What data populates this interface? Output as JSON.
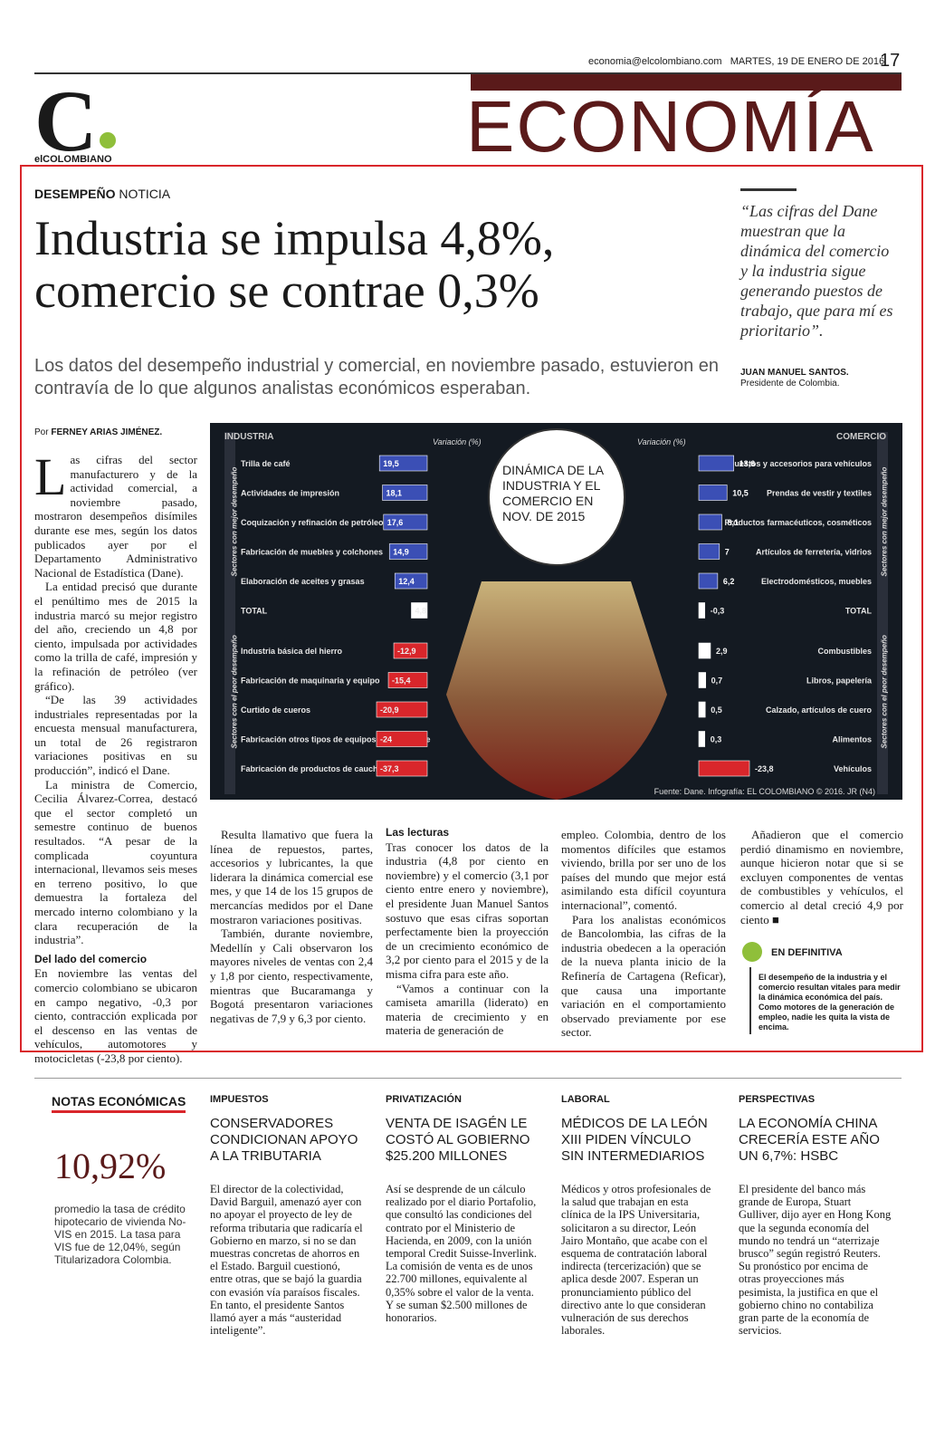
{
  "header": {
    "email": "economia@elcolombiano.com",
    "date": "MARTES, 19 DE ENERO DE 2016",
    "page": "17",
    "brand": "elCOLOMBIANO",
    "brand_letter": "C",
    "section": "ECONOMÍA"
  },
  "article": {
    "kicker_bold": "DESEMPEÑO",
    "kicker": "NOTICIA",
    "headline": "Industria se impulsa 4,8%, comercio se contrae 0,3%",
    "deck": "Los datos del desempeño industrial y comercial, en noviembre pasado, estuvieron en contravía de lo que algunos analistas económicos esperaban.",
    "quote": "“Las cifras del Dane muestran que la dinámica del comercio y la industria sigue generando puestos de trabajo, que para mí es prioritario”.",
    "quote_author": "JUAN MANUEL SANTOS.",
    "quote_role": "Presidente de Colombia.",
    "byline_prefix": "Por",
    "byline": "FERNEY ARIAS JIMÉNEZ.",
    "col1_drop": "L",
    "col1_p1": "as cifras del sector manufacturero y de la actividad comercial, a noviembre pasado, mostraron desempeños disímiles durante ese mes, según los datos publicados ayer por el Departamento Administrativo Nacional de Estadística (Dane).",
    "col1_p2": "La entidad precisó que durante el penúltimo mes de 2015 la industria marcó su mejor registro del año, creciendo un 4,8 por ciento, impulsada por actividades como la trilla de café, impresión y la refinación de petróleo (ver gráfico).",
    "col1_p3": "“De las 39 actividades industriales representadas por la encuesta mensual manufacturera, un total de 26 registraron variaciones positivas en su producción”, indicó el Dane.",
    "col1_p4": "La ministra de Comercio, Cecilia Álvarez-Correa, destacó que el sector completó un semestre continuo de buenos resultados. “A pesar de la complicada coyuntura internacional, llevamos seis meses en terreno positivo, lo que demuestra la fortaleza del mercado interno colombiano y la clara recuperación de la industria”.",
    "col1_h": "Del lado del comercio",
    "col1_p5": "En noviembre las ventas del comercio colombiano se ubicaron en campo negativo, -0,3 por ciento, contracción explicada por el descenso en las ventas de vehículos, automotores y motocicletas (-23,8 por ciento).",
    "col2_p1": "Resulta llamativo que fuera la línea de repuestos, partes, accesorios y lubricantes, la que liderara la dinámica comercial ese mes, y que 14 de los 15 grupos de mercancías medidos por el Dane mostraron variaciones positivas.",
    "col2_p2": "También, durante noviembre, Medellín y Cali observaron los mayores niveles de ventas con 2,4 y 1,8 por ciento, respectivamente, mientras que Bucaramanga y Bogotá presentaron variaciones negativas de 7,9 y 6,3 por ciento.",
    "col3_h": "Las lecturas",
    "col3_p1": "Tras conocer los datos de la industria (4,8 por ciento en noviembre) y el comercio (3,1 por ciento entre enero y noviembre), el presidente Juan Manuel Santos sostuvo que esas cifras soportan perfectamente bien la proyección de un crecimiento económico de 3,2 por ciento para el 2015 y de la misma cifra para este año.",
    "col3_p2": "“Vamos a continuar con la camiseta amarilla (liderato) en materia de crecimiento y en materia de generación de",
    "col4_p1": "empleo. Colombia, dentro de los momentos difíciles que estamos viviendo, brilla por ser uno de los países del mundo que mejor está asimilando esta difícil coyuntura internacional”, comentó.",
    "col4_p2": "Para los analistas económicos de Bancolombia, las cifras de la industria obedecen a la operación de la nueva planta inicio de la Refinería de Cartagena (Reficar), que causa una importante variación en el comportamiento observado previamente por ese sector.",
    "col5_p1": "Añadieron que el comercio perdió dinamismo en noviembre, aunque hicieron notar que si se excluyen componentes de ventas de combustibles y vehículos, el comercio al detal creció 4,9 por ciento ■",
    "def_title": "EN DEFINITIVA",
    "def_body": "El desempeño de la industria y el comercio resultan vitales para medir la dinámica económica del país. Como motores de la generación de empleo, nadie les quita la vista de encima."
  },
  "chart_data": {
    "type": "bar",
    "title": "DINÁMICA DE LA INDUSTRIA Y EL COMERCIO EN NOV. DE 2015",
    "source": "Fuente: Dane. Infografía: EL COLOMBIANO © 2016. JR (N4)",
    "variation_label": "Variación (%)",
    "industria": {
      "name": "INDUSTRIA",
      "best_label": "Sectores con mejor desempeño",
      "worst_label": "Sectores con el peor desempeño",
      "best": [
        {
          "label": "Trilla de café",
          "value": 19.5
        },
        {
          "label": "Actividades de impresión",
          "value": 18.1
        },
        {
          "label": "Coquización y refinación de petróleo",
          "value": 17.6
        },
        {
          "label": "Fabricación de muebles y colchones",
          "value": 14.9
        },
        {
          "label": "Elaboración de aceites y grasas",
          "value": 12.4
        }
      ],
      "total": {
        "label": "TOTAL",
        "value": 4.8
      },
      "worst": [
        {
          "label": "Industria básica del hierro",
          "value": -12.9
        },
        {
          "label": "Fabricación de maquinaria y equipo",
          "value": -15.4
        },
        {
          "label": "Curtido de cueros",
          "value": -20.9
        },
        {
          "label": "Fabricación otros tipos de equipos de transporte",
          "value": -24.0
        },
        {
          "label": "Fabricación de productos de caucho",
          "value": -37.3
        }
      ]
    },
    "comercio": {
      "name": "COMERCIO",
      "best_label": "Sectores con mejor desempeño",
      "worst_label": "Sectores con el peor desempeño",
      "best": [
        {
          "label": "Repuestos y accesorios para vehículos",
          "value": 13.6
        },
        {
          "label": "Prendas de vestir y textiles",
          "value": 10.5
        },
        {
          "label": "Productos farmacéuticos, cosméticos",
          "value": 8.1
        },
        {
          "label": "Artículos de ferretería, vidrios",
          "value": 7.0
        },
        {
          "label": "Electrodomésticos, muebles",
          "value": 6.2
        }
      ],
      "total": {
        "label": "TOTAL",
        "value": -0.3
      },
      "worst": [
        {
          "label": "Combustibles",
          "value": 2.9
        },
        {
          "label": "Libros, papelería",
          "value": 0.7
        },
        {
          "label": "Calzado, artículos de cuero",
          "value": 0.5
        },
        {
          "label": "Alimentos",
          "value": 0.3
        },
        {
          "label": "Vehículos",
          "value": -23.8
        }
      ]
    }
  },
  "notas": {
    "title": "NOTAS ECONÓMICAS",
    "big": "10,92%",
    "body": "promedio la tasa de crédito hipotecario de vivienda No-VIS en 2015. La tasa para VIS fue de 12,04%, según Titularizadora Colombia.",
    "items": [
      {
        "cat": "IMPUESTOS",
        "title": "CONSERVADORES CONDICIONAN APOYO A LA TRIBUTARIA",
        "text": "El director de la colectividad, David Barguil, amenazó ayer con no apoyar el proyecto de ley de reforma tributaria que radicaría el Gobierno en marzo, si no se dan muestras concretas de ahorros en el Estado. Barguil cuestionó, entre otras, que se bajó la guardia con evasión vía paraísos fiscales. En tanto, el presidente Santos llamó ayer a más “austeridad inteligente”."
      },
      {
        "cat": "PRIVATIZACIÓN",
        "title": "VENTA DE ISAGÉN LE COSTÓ AL GOBIERNO $25.200 MILLONES",
        "text": "Así se desprende de un cálculo realizado por el diario Portafolio, que consultó las condiciones del contrato por el Ministerio de Hacienda, en 2009, con la unión temporal Credit Suisse-Inverlink. La comisión de venta es de unos 22.700 millones, equivalente al 0,35% sobre el valor de la venta. Y se suman $2.500 millones de honorarios."
      },
      {
        "cat": "LABORAL",
        "title": "MÉDICOS DE LA LEÓN XIII PIDEN VÍNCULO SIN INTERMEDIARIOS",
        "text": "Médicos y otros profesionales de la salud que trabajan en esta clínica de la IPS Universitaria, solicitaron a su director, León Jairo Montaño, que acabe con el esquema de contratación laboral indirecta (tercerización) que se aplica desde 2007. Esperan un pronunciamiento público del directivo ante lo que consideran vulneración de sus derechos laborales."
      },
      {
        "cat": "PERSPECTIVAS",
        "title": "LA ECONOMÍA CHINA CRECERÍA ESTE AÑO UN 6,7%: HSBC",
        "text": "El presidente del banco más grande de Europa, Stuart Gulliver, dijo ayer en Hong Kong que la segunda economía del mundo no tendrá un “aterrizaje brusco” según registró Reuters. Su pronóstico por encima de otras proyecciones más pesimista, la justifica en que el gobierno chino no contabiliza gran parte de la economía de servicios."
      }
    ]
  },
  "colors": {
    "brand": "#5a1a1a",
    "frame": "#d9262b",
    "bar_best": "#3b4fb5",
    "bar_worst": "#d9262b"
  }
}
